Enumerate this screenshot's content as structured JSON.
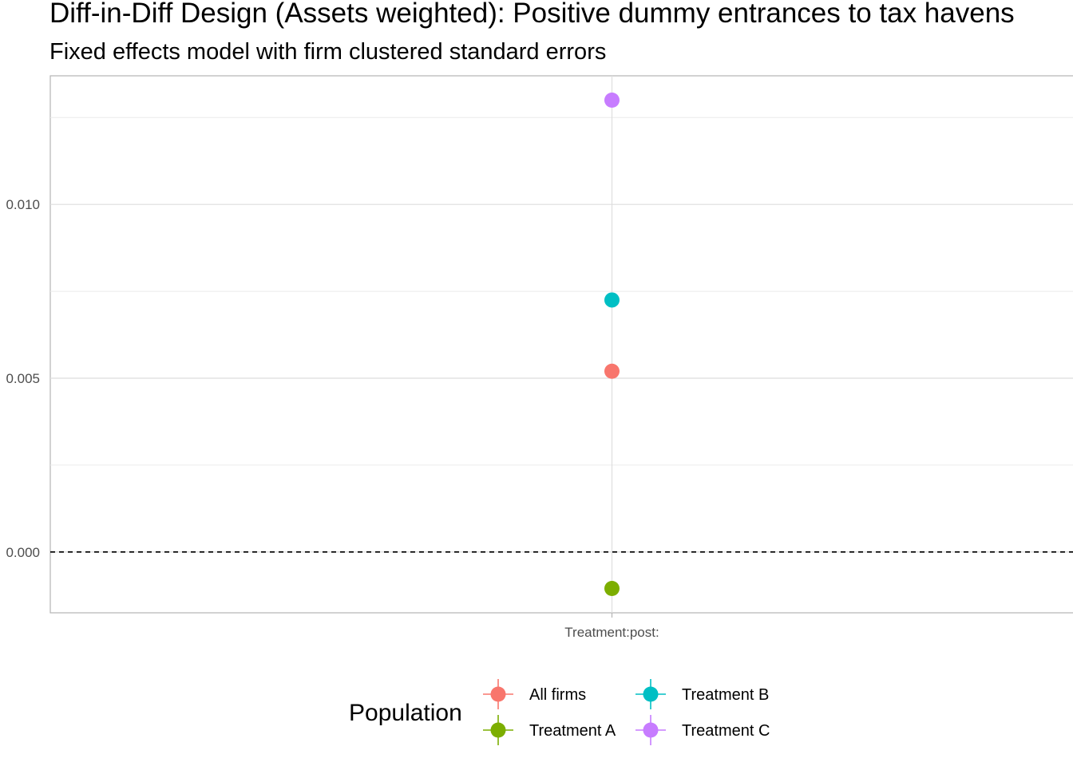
{
  "chart_data": {
    "type": "scatter",
    "title": "Diff-in-Diff Design (Assets weighted): Positive dummy entrances to tax havens",
    "subtitle": "Fixed effects model with firm clustered standard errors",
    "xlabel": "",
    "ylabel": "",
    "categories": [
      "Treatment:post:"
    ],
    "ylim": [
      -0.00175,
      0.0137
    ],
    "y_ticks": [
      "0.000",
      "0.005",
      "0.010"
    ],
    "y_tick_values": [
      0.0,
      0.005,
      0.01
    ],
    "grid": true,
    "reference_line": {
      "y": 0,
      "style": "dashed",
      "color": "#000000"
    },
    "legend": {
      "title": "Population",
      "placement": "bottom"
    },
    "series": [
      {
        "name": "All firms",
        "color": "#F8766D",
        "values": [
          0.0052
        ]
      },
      {
        "name": "Treatment A",
        "color": "#7CAE00",
        "values": [
          -0.00105
        ]
      },
      {
        "name": "Treatment B",
        "color": "#00BFC4",
        "values": [
          0.00725
        ]
      },
      {
        "name": "Treatment C",
        "color": "#C77CFF",
        "values": [
          0.013
        ]
      }
    ]
  }
}
